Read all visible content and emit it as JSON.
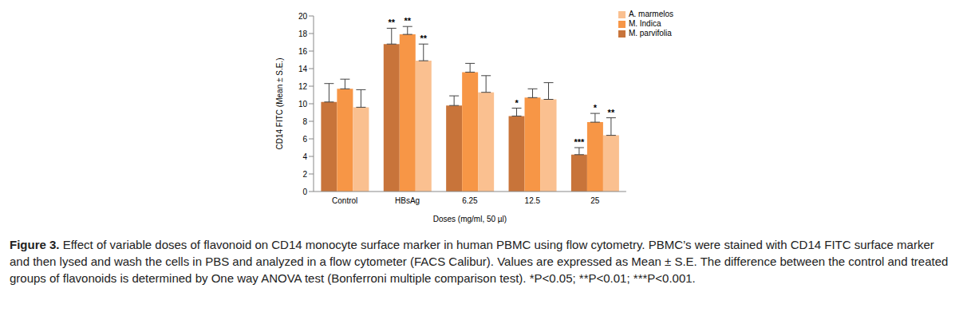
{
  "chart_data": {
    "type": "bar",
    "categories": [
      "Control",
      "HBsAg",
      "6.25",
      "12.5",
      "25"
    ],
    "x_label": "Doses (mg/ml, 50 µl)",
    "y_label": "CD14 FITC (Mean ± S.E.)",
    "ylim": [
      0,
      20
    ],
    "yticks": [
      0,
      2,
      4,
      6,
      8,
      10,
      12,
      14,
      16,
      18,
      20
    ],
    "grid": false,
    "legend": "top-right",
    "series": [
      {
        "name": "M. parvifolia",
        "color": "#C8743A",
        "values": [
          10.2,
          16.8,
          9.8,
          8.6,
          4.2
        ],
        "errors": [
          2.1,
          1.8,
          1.1,
          0.9,
          0.8
        ],
        "significance": [
          null,
          "**",
          null,
          "*",
          "***"
        ]
      },
      {
        "name": "M. Indica",
        "color": "#F79646",
        "values": [
          11.7,
          17.9,
          13.6,
          10.7,
          7.9
        ],
        "errors": [
          1.1,
          0.9,
          1.0,
          1.0,
          1.0
        ],
        "significance": [
          null,
          "**",
          null,
          null,
          "*"
        ]
      },
      {
        "name": "A. marmelos",
        "color": "#FAC090",
        "values": [
          9.6,
          14.9,
          11.3,
          10.5,
          6.4
        ],
        "errors": [
          2.0,
          1.9,
          1.9,
          1.9,
          2.0
        ],
        "significance": [
          null,
          "**",
          null,
          null,
          "**"
        ]
      }
    ],
    "caption_label": "Figure 3.",
    "caption": "Effect of variable doses of flavonoid on CD14 monocyte surface marker in human PBMC using flow cytometry. PBMC’s were stained with CD14 FITC surface marker and then lysed and wash the cells in PBS and analyzed in a flow cytometer (FACS Calibur). Values are expressed as Mean ± S.E. The difference between the control and treated groups of flavonoids is determined by One way ANOVA test (Bonferroni multiple comparison test). *P<0.05; **P<0.01; ***P<0.001."
  }
}
